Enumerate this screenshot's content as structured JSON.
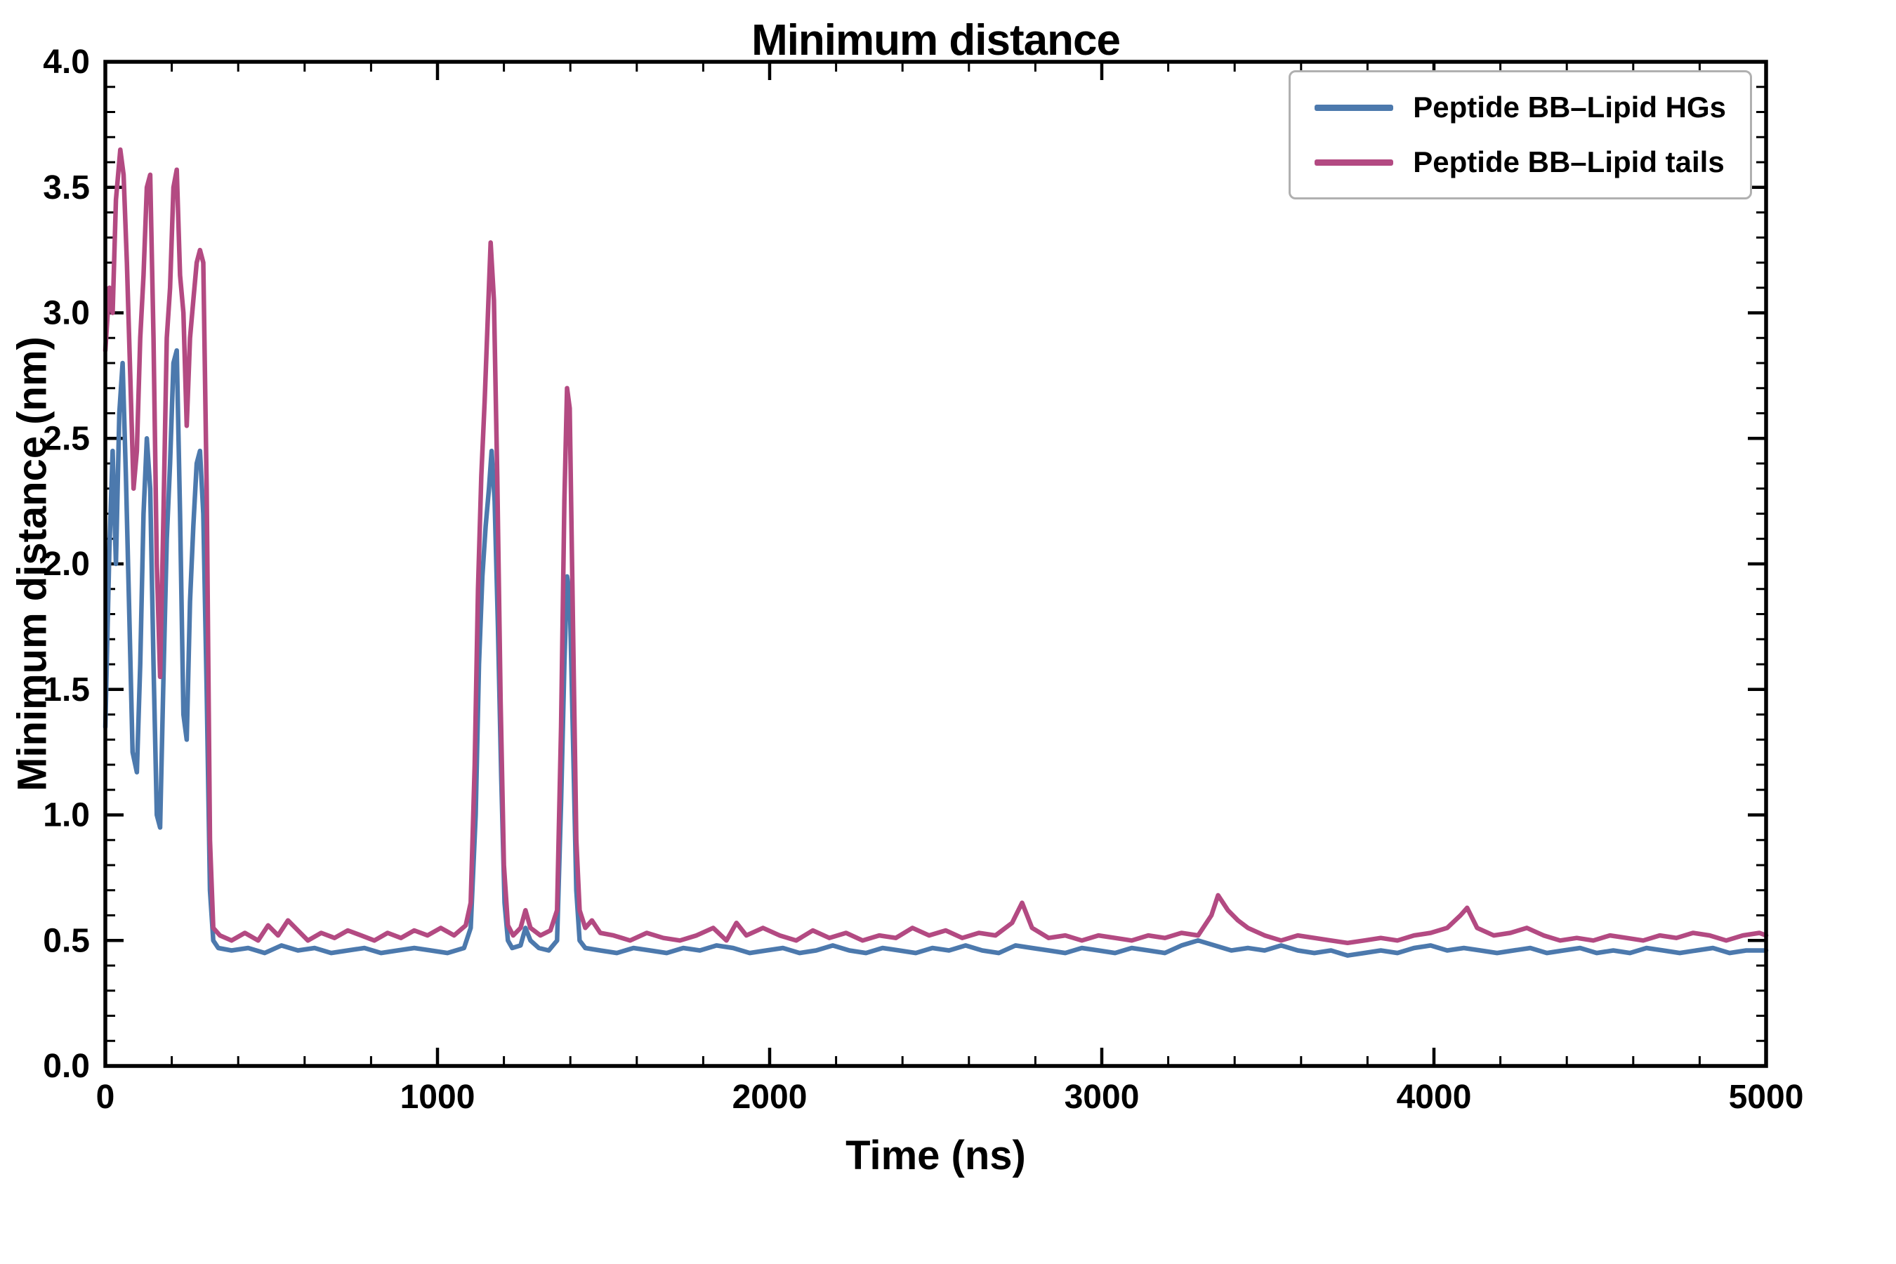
{
  "chart_data": {
    "type": "line",
    "title": "Minimum distance",
    "xlabel": "Time (ns)",
    "ylabel": "Minimum distance (nm)",
    "xlim": [
      0,
      5000
    ],
    "ylim": [
      0.0,
      4.0
    ],
    "xticks": [
      0,
      1000,
      2000,
      3000,
      4000,
      5000
    ],
    "xtick_labels": [
      "0",
      "1000",
      "2000",
      "3000",
      "4000",
      "5000"
    ],
    "yticks": [
      0.0,
      0.5,
      1.0,
      1.5,
      2.0,
      2.5,
      3.0,
      3.5,
      4.0
    ],
    "ytick_labels": [
      "0.0",
      "0.5",
      "1.0",
      "1.5",
      "2.0",
      "2.5",
      "3.0",
      "3.5",
      "4.0"
    ],
    "x_minor_step": 200,
    "y_minor_step": 0.1,
    "grid": false,
    "legend_position": "upper right",
    "axis_color": "#000000",
    "background": "#ffffff",
    "series": [
      {
        "name": "Peptide BB–Lipid HGs",
        "color": "#4C79AD",
        "points": [
          [
            0,
            1.35
          ],
          [
            12,
            2.05
          ],
          [
            22,
            2.45
          ],
          [
            32,
            2.0
          ],
          [
            42,
            2.6
          ],
          [
            52,
            2.8
          ],
          [
            62,
            2.35
          ],
          [
            72,
            1.8
          ],
          [
            82,
            1.25
          ],
          [
            95,
            1.17
          ],
          [
            105,
            1.6
          ],
          [
            115,
            2.2
          ],
          [
            125,
            2.5
          ],
          [
            135,
            2.3
          ],
          [
            145,
            1.6
          ],
          [
            155,
            1.0
          ],
          [
            165,
            0.95
          ],
          [
            175,
            1.55
          ],
          [
            185,
            2.1
          ],
          [
            195,
            2.4
          ],
          [
            205,
            2.8
          ],
          [
            215,
            2.85
          ],
          [
            225,
            2.2
          ],
          [
            235,
            1.4
          ],
          [
            245,
            1.3
          ],
          [
            255,
            1.85
          ],
          [
            265,
            2.15
          ],
          [
            275,
            2.4
          ],
          [
            285,
            2.45
          ],
          [
            295,
            2.2
          ],
          [
            305,
            1.5
          ],
          [
            315,
            0.7
          ],
          [
            325,
            0.5
          ],
          [
            340,
            0.47
          ],
          [
            380,
            0.46
          ],
          [
            430,
            0.47
          ],
          [
            480,
            0.45
          ],
          [
            530,
            0.48
          ],
          [
            580,
            0.46
          ],
          [
            630,
            0.47
          ],
          [
            680,
            0.45
          ],
          [
            730,
            0.46
          ],
          [
            780,
            0.47
          ],
          [
            830,
            0.45
          ],
          [
            880,
            0.46
          ],
          [
            930,
            0.47
          ],
          [
            980,
            0.46
          ],
          [
            1030,
            0.45
          ],
          [
            1080,
            0.47
          ],
          [
            1100,
            0.55
          ],
          [
            1115,
            1.0
          ],
          [
            1125,
            1.6
          ],
          [
            1135,
            1.95
          ],
          [
            1145,
            2.15
          ],
          [
            1155,
            2.3
          ],
          [
            1163,
            2.45
          ],
          [
            1172,
            2.25
          ],
          [
            1182,
            1.75
          ],
          [
            1192,
            1.15
          ],
          [
            1202,
            0.65
          ],
          [
            1212,
            0.5
          ],
          [
            1225,
            0.47
          ],
          [
            1250,
            0.48
          ],
          [
            1265,
            0.55
          ],
          [
            1280,
            0.5
          ],
          [
            1305,
            0.47
          ],
          [
            1335,
            0.46
          ],
          [
            1360,
            0.5
          ],
          [
            1372,
            1.05
          ],
          [
            1382,
            1.6
          ],
          [
            1390,
            1.95
          ],
          [
            1398,
            1.88
          ],
          [
            1408,
            1.3
          ],
          [
            1418,
            0.7
          ],
          [
            1428,
            0.5
          ],
          [
            1445,
            0.47
          ],
          [
            1490,
            0.46
          ],
          [
            1540,
            0.45
          ],
          [
            1590,
            0.47
          ],
          [
            1640,
            0.46
          ],
          [
            1690,
            0.45
          ],
          [
            1740,
            0.47
          ],
          [
            1790,
            0.46
          ],
          [
            1840,
            0.48
          ],
          [
            1890,
            0.47
          ],
          [
            1940,
            0.45
          ],
          [
            1990,
            0.46
          ],
          [
            2040,
            0.47
          ],
          [
            2090,
            0.45
          ],
          [
            2140,
            0.46
          ],
          [
            2190,
            0.48
          ],
          [
            2240,
            0.46
          ],
          [
            2290,
            0.45
          ],
          [
            2340,
            0.47
          ],
          [
            2390,
            0.46
          ],
          [
            2440,
            0.45
          ],
          [
            2490,
            0.47
          ],
          [
            2540,
            0.46
          ],
          [
            2590,
            0.48
          ],
          [
            2640,
            0.46
          ],
          [
            2690,
            0.45
          ],
          [
            2740,
            0.48
          ],
          [
            2790,
            0.47
          ],
          [
            2840,
            0.46
          ],
          [
            2890,
            0.45
          ],
          [
            2940,
            0.47
          ],
          [
            2990,
            0.46
          ],
          [
            3040,
            0.45
          ],
          [
            3090,
            0.47
          ],
          [
            3140,
            0.46
          ],
          [
            3190,
            0.45
          ],
          [
            3240,
            0.48
          ],
          [
            3290,
            0.5
          ],
          [
            3340,
            0.48
          ],
          [
            3390,
            0.46
          ],
          [
            3440,
            0.47
          ],
          [
            3490,
            0.46
          ],
          [
            3540,
            0.48
          ],
          [
            3590,
            0.46
          ],
          [
            3640,
            0.45
          ],
          [
            3690,
            0.46
          ],
          [
            3740,
            0.44
          ],
          [
            3790,
            0.45
          ],
          [
            3840,
            0.46
          ],
          [
            3890,
            0.45
          ],
          [
            3940,
            0.47
          ],
          [
            3990,
            0.48
          ],
          [
            4040,
            0.46
          ],
          [
            4090,
            0.47
          ],
          [
            4140,
            0.46
          ],
          [
            4190,
            0.45
          ],
          [
            4240,
            0.46
          ],
          [
            4290,
            0.47
          ],
          [
            4340,
            0.45
          ],
          [
            4390,
            0.46
          ],
          [
            4440,
            0.47
          ],
          [
            4490,
            0.45
          ],
          [
            4540,
            0.46
          ],
          [
            4590,
            0.45
          ],
          [
            4640,
            0.47
          ],
          [
            4690,
            0.46
          ],
          [
            4740,
            0.45
          ],
          [
            4790,
            0.46
          ],
          [
            4840,
            0.47
          ],
          [
            4890,
            0.45
          ],
          [
            4940,
            0.46
          ],
          [
            5000,
            0.46
          ]
        ]
      },
      {
        "name": "Peptide BB–Lipid tails",
        "color": "#B34A82",
        "points": [
          [
            0,
            2.85
          ],
          [
            12,
            3.1
          ],
          [
            22,
            3.0
          ],
          [
            32,
            3.45
          ],
          [
            45,
            3.65
          ],
          [
            55,
            3.55
          ],
          [
            65,
            3.2
          ],
          [
            75,
            2.75
          ],
          [
            85,
            2.3
          ],
          [
            95,
            2.45
          ],
          [
            105,
            2.9
          ],
          [
            115,
            3.15
          ],
          [
            125,
            3.5
          ],
          [
            135,
            3.55
          ],
          [
            145,
            2.9
          ],
          [
            155,
            2.0
          ],
          [
            165,
            1.55
          ],
          [
            175,
            2.2
          ],
          [
            185,
            2.9
          ],
          [
            195,
            3.1
          ],
          [
            205,
            3.5
          ],
          [
            215,
            3.57
          ],
          [
            225,
            3.15
          ],
          [
            235,
            3.0
          ],
          [
            245,
            2.55
          ],
          [
            255,
            2.9
          ],
          [
            265,
            3.05
          ],
          [
            275,
            3.2
          ],
          [
            285,
            3.25
          ],
          [
            295,
            3.2
          ],
          [
            305,
            2.3
          ],
          [
            315,
            0.9
          ],
          [
            325,
            0.55
          ],
          [
            345,
            0.52
          ],
          [
            380,
            0.5
          ],
          [
            420,
            0.53
          ],
          [
            460,
            0.5
          ],
          [
            490,
            0.56
          ],
          [
            520,
            0.52
          ],
          [
            550,
            0.58
          ],
          [
            580,
            0.54
          ],
          [
            610,
            0.5
          ],
          [
            650,
            0.53
          ],
          [
            690,
            0.51
          ],
          [
            730,
            0.54
          ],
          [
            770,
            0.52
          ],
          [
            810,
            0.5
          ],
          [
            850,
            0.53
          ],
          [
            890,
            0.51
          ],
          [
            930,
            0.54
          ],
          [
            970,
            0.52
          ],
          [
            1010,
            0.55
          ],
          [
            1050,
            0.52
          ],
          [
            1085,
            0.56
          ],
          [
            1100,
            0.65
          ],
          [
            1112,
            1.2
          ],
          [
            1122,
            1.9
          ],
          [
            1132,
            2.35
          ],
          [
            1142,
            2.65
          ],
          [
            1152,
            3.0
          ],
          [
            1160,
            3.28
          ],
          [
            1170,
            3.05
          ],
          [
            1180,
            2.35
          ],
          [
            1190,
            1.45
          ],
          [
            1200,
            0.8
          ],
          [
            1212,
            0.56
          ],
          [
            1228,
            0.52
          ],
          [
            1250,
            0.55
          ],
          [
            1265,
            0.62
          ],
          [
            1280,
            0.55
          ],
          [
            1310,
            0.52
          ],
          [
            1340,
            0.54
          ],
          [
            1360,
            0.62
          ],
          [
            1372,
            1.35
          ],
          [
            1382,
            2.25
          ],
          [
            1390,
            2.7
          ],
          [
            1398,
            2.62
          ],
          [
            1408,
            1.75
          ],
          [
            1418,
            0.9
          ],
          [
            1428,
            0.62
          ],
          [
            1445,
            0.55
          ],
          [
            1465,
            0.58
          ],
          [
            1490,
            0.53
          ],
          [
            1530,
            0.52
          ],
          [
            1580,
            0.5
          ],
          [
            1630,
            0.53
          ],
          [
            1680,
            0.51
          ],
          [
            1730,
            0.5
          ],
          [
            1780,
            0.52
          ],
          [
            1830,
            0.55
          ],
          [
            1870,
            0.5
          ],
          [
            1900,
            0.57
          ],
          [
            1930,
            0.52
          ],
          [
            1980,
            0.55
          ],
          [
            2030,
            0.52
          ],
          [
            2080,
            0.5
          ],
          [
            2130,
            0.54
          ],
          [
            2180,
            0.51
          ],
          [
            2230,
            0.53
          ],
          [
            2280,
            0.5
          ],
          [
            2330,
            0.52
          ],
          [
            2380,
            0.51
          ],
          [
            2430,
            0.55
          ],
          [
            2480,
            0.52
          ],
          [
            2530,
            0.54
          ],
          [
            2580,
            0.51
          ],
          [
            2630,
            0.53
          ],
          [
            2680,
            0.52
          ],
          [
            2730,
            0.57
          ],
          [
            2760,
            0.65
          ],
          [
            2790,
            0.55
          ],
          [
            2840,
            0.51
          ],
          [
            2890,
            0.52
          ],
          [
            2940,
            0.5
          ],
          [
            2990,
            0.52
          ],
          [
            3040,
            0.51
          ],
          [
            3090,
            0.5
          ],
          [
            3140,
            0.52
          ],
          [
            3190,
            0.51
          ],
          [
            3240,
            0.53
          ],
          [
            3290,
            0.52
          ],
          [
            3330,
            0.6
          ],
          [
            3350,
            0.68
          ],
          [
            3380,
            0.62
          ],
          [
            3410,
            0.58
          ],
          [
            3440,
            0.55
          ],
          [
            3490,
            0.52
          ],
          [
            3540,
            0.5
          ],
          [
            3590,
            0.52
          ],
          [
            3640,
            0.51
          ],
          [
            3690,
            0.5
          ],
          [
            3740,
            0.49
          ],
          [
            3790,
            0.5
          ],
          [
            3840,
            0.51
          ],
          [
            3890,
            0.5
          ],
          [
            3940,
            0.52
          ],
          [
            3990,
            0.53
          ],
          [
            4040,
            0.55
          ],
          [
            4080,
            0.6
          ],
          [
            4100,
            0.63
          ],
          [
            4130,
            0.55
          ],
          [
            4180,
            0.52
          ],
          [
            4230,
            0.53
          ],
          [
            4280,
            0.55
          ],
          [
            4330,
            0.52
          ],
          [
            4380,
            0.5
          ],
          [
            4430,
            0.51
          ],
          [
            4480,
            0.5
          ],
          [
            4530,
            0.52
          ],
          [
            4580,
            0.51
          ],
          [
            4630,
            0.5
          ],
          [
            4680,
            0.52
          ],
          [
            4730,
            0.51
          ],
          [
            4780,
            0.53
          ],
          [
            4830,
            0.52
          ],
          [
            4880,
            0.5
          ],
          [
            4930,
            0.52
          ],
          [
            4980,
            0.53
          ],
          [
            5000,
            0.52
          ]
        ]
      }
    ]
  }
}
